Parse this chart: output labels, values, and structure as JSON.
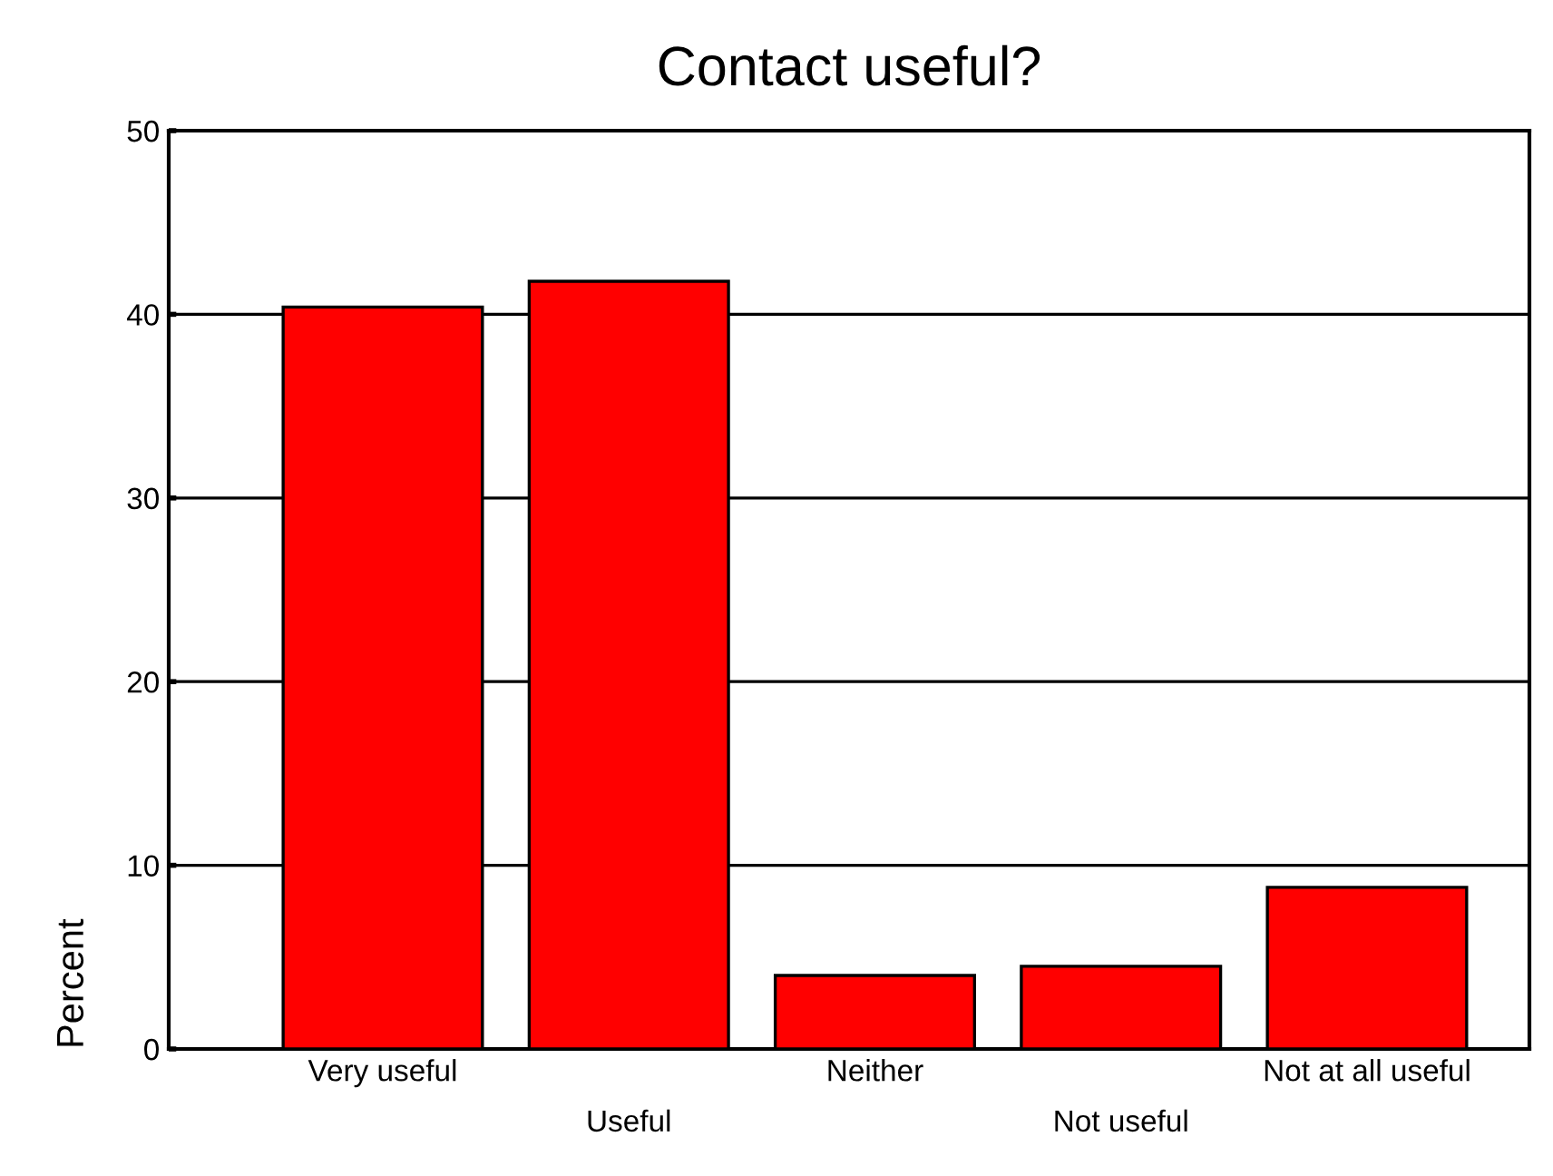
{
  "chart_data": {
    "type": "bar",
    "title": "Contact useful?",
    "ylabel": "Percent",
    "categories": [
      "Very useful",
      "Useful",
      "Neither",
      "Not useful",
      "Not at all useful"
    ],
    "values": [
      40.4,
      41.8,
      4.0,
      4.5,
      8.8
    ],
    "color": "#ff0000",
    "ylim": [
      0,
      50
    ],
    "yticks": [
      0,
      10,
      20,
      30,
      40,
      50
    ],
    "grid": "y",
    "legend": false
  }
}
